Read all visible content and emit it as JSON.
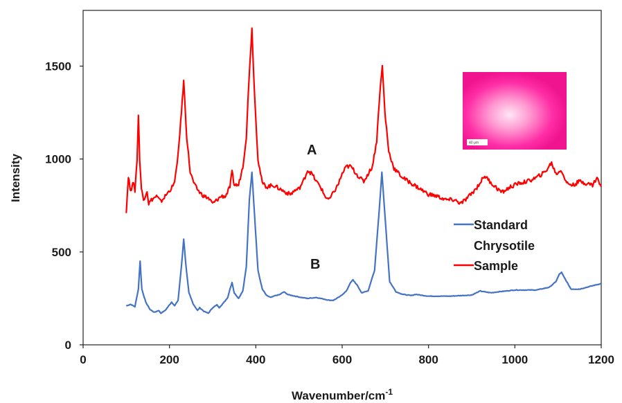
{
  "chart_data": {
    "type": "line",
    "xlabel": "Wavenumber/cm",
    "xlabel_sup": "-1",
    "ylabel": "Intensity",
    "xlim": [
      0,
      1200
    ],
    "ylim": [
      0,
      1800
    ],
    "x_ticks": [
      "0",
      "200",
      "400",
      "600",
      "800",
      "1000",
      "1200"
    ],
    "y_ticks": [
      "0",
      "500",
      "1000",
      "1500"
    ],
    "grid": false,
    "legend_position": "right",
    "series": [
      {
        "name": "Standard Chrysotile",
        "legend_line1": "Standard",
        "legend_line2": "Chrysotile",
        "color": "#4472c4",
        "annotation": "B",
        "x": [
          100,
          110,
          120,
          128,
          132,
          136,
          145,
          155,
          165,
          175,
          180,
          190,
          200,
          205,
          212,
          220,
          228,
          233,
          238,
          245,
          255,
          265,
          270,
          280,
          290,
          300,
          310,
          315,
          325,
          335,
          340,
          345,
          350,
          360,
          370,
          378,
          385,
          391,
          397,
          405,
          415,
          425,
          435,
          445,
          455,
          465,
          475,
          485,
          495,
          505,
          520,
          540,
          560,
          570,
          580,
          595,
          610,
          618,
          625,
          635,
          645,
          660,
          675,
          685,
          692,
          699,
          710,
          725,
          740,
          760,
          770,
          780,
          800,
          850,
          900,
          920,
          930,
          945,
          960,
          1000,
          1050,
          1080,
          1095,
          1103,
          1108,
          1115,
          1130,
          1150,
          1200
        ],
        "y": [
          210,
          218,
          205,
          300,
          450,
          300,
          230,
          190,
          175,
          185,
          170,
          185,
          215,
          230,
          210,
          240,
          430,
          570,
          430,
          280,
          220,
          185,
          200,
          180,
          170,
          200,
          215,
          200,
          225,
          255,
          300,
          335,
          280,
          250,
          290,
          420,
          780,
          930,
          700,
          400,
          300,
          265,
          255,
          265,
          270,
          285,
          270,
          265,
          260,
          255,
          250,
          255,
          245,
          240,
          240,
          260,
          290,
          330,
          350,
          320,
          280,
          290,
          400,
          700,
          930,
          700,
          340,
          285,
          272,
          265,
          272,
          268,
          262,
          262,
          268,
          290,
          285,
          280,
          285,
          295,
          295,
          310,
          340,
          380,
          390,
          360,
          300,
          300,
          330
        ]
      },
      {
        "name": "Sample",
        "legend_line1": "Sample",
        "color": "#ff0000",
        "annotation": "A",
        "x": [
          100,
          105,
          110,
          115,
          120,
          125,
          128,
          131,
          135,
          140,
          148,
          152,
          158,
          170,
          180,
          190,
          200,
          210,
          218,
          226,
          233,
          240,
          248,
          258,
          270,
          280,
          290,
          300,
          310,
          320,
          330,
          340,
          345,
          350,
          360,
          370,
          378,
          385,
          391,
          397,
          405,
          415,
          425,
          440,
          455,
          470,
          480,
          490,
          500,
          510,
          520,
          530,
          540,
          550,
          560,
          570,
          580,
          590,
          600,
          610,
          620,
          630,
          640,
          650,
          660,
          670,
          680,
          687,
          693,
          699,
          708,
          720,
          740,
          760,
          780,
          800,
          820,
          840,
          860,
          875,
          890,
          910,
          930,
          950,
          970,
          990,
          1010,
          1030,
          1050,
          1070,
          1085,
          1095,
          1108,
          1120,
          1135,
          1150,
          1165,
          1180,
          1190,
          1200
        ],
        "y": [
          720,
          910,
          820,
          880,
          830,
          1000,
          1240,
          1000,
          840,
          780,
          830,
          760,
          780,
          800,
          770,
          800,
          830,
          860,
          970,
          1200,
          1420,
          1120,
          930,
          860,
          820,
          800,
          790,
          760,
          780,
          800,
          800,
          850,
          930,
          860,
          860,
          960,
          1120,
          1470,
          1700,
          1350,
          1000,
          870,
          850,
          860,
          840,
          820,
          810,
          830,
          840,
          880,
          940,
          920,
          880,
          850,
          800,
          780,
          820,
          860,
          920,
          960,
          960,
          930,
          900,
          880,
          920,
          960,
          1100,
          1350,
          1500,
          1250,
          1040,
          950,
          900,
          870,
          840,
          810,
          800,
          780,
          780,
          760,
          790,
          840,
          910,
          860,
          820,
          850,
          870,
          880,
          900,
          930,
          980,
          920,
          940,
          870,
          860,
          880,
          870,
          860,
          900,
          850
        ]
      }
    ],
    "inset": {
      "scale_label": "40 μm"
    }
  }
}
